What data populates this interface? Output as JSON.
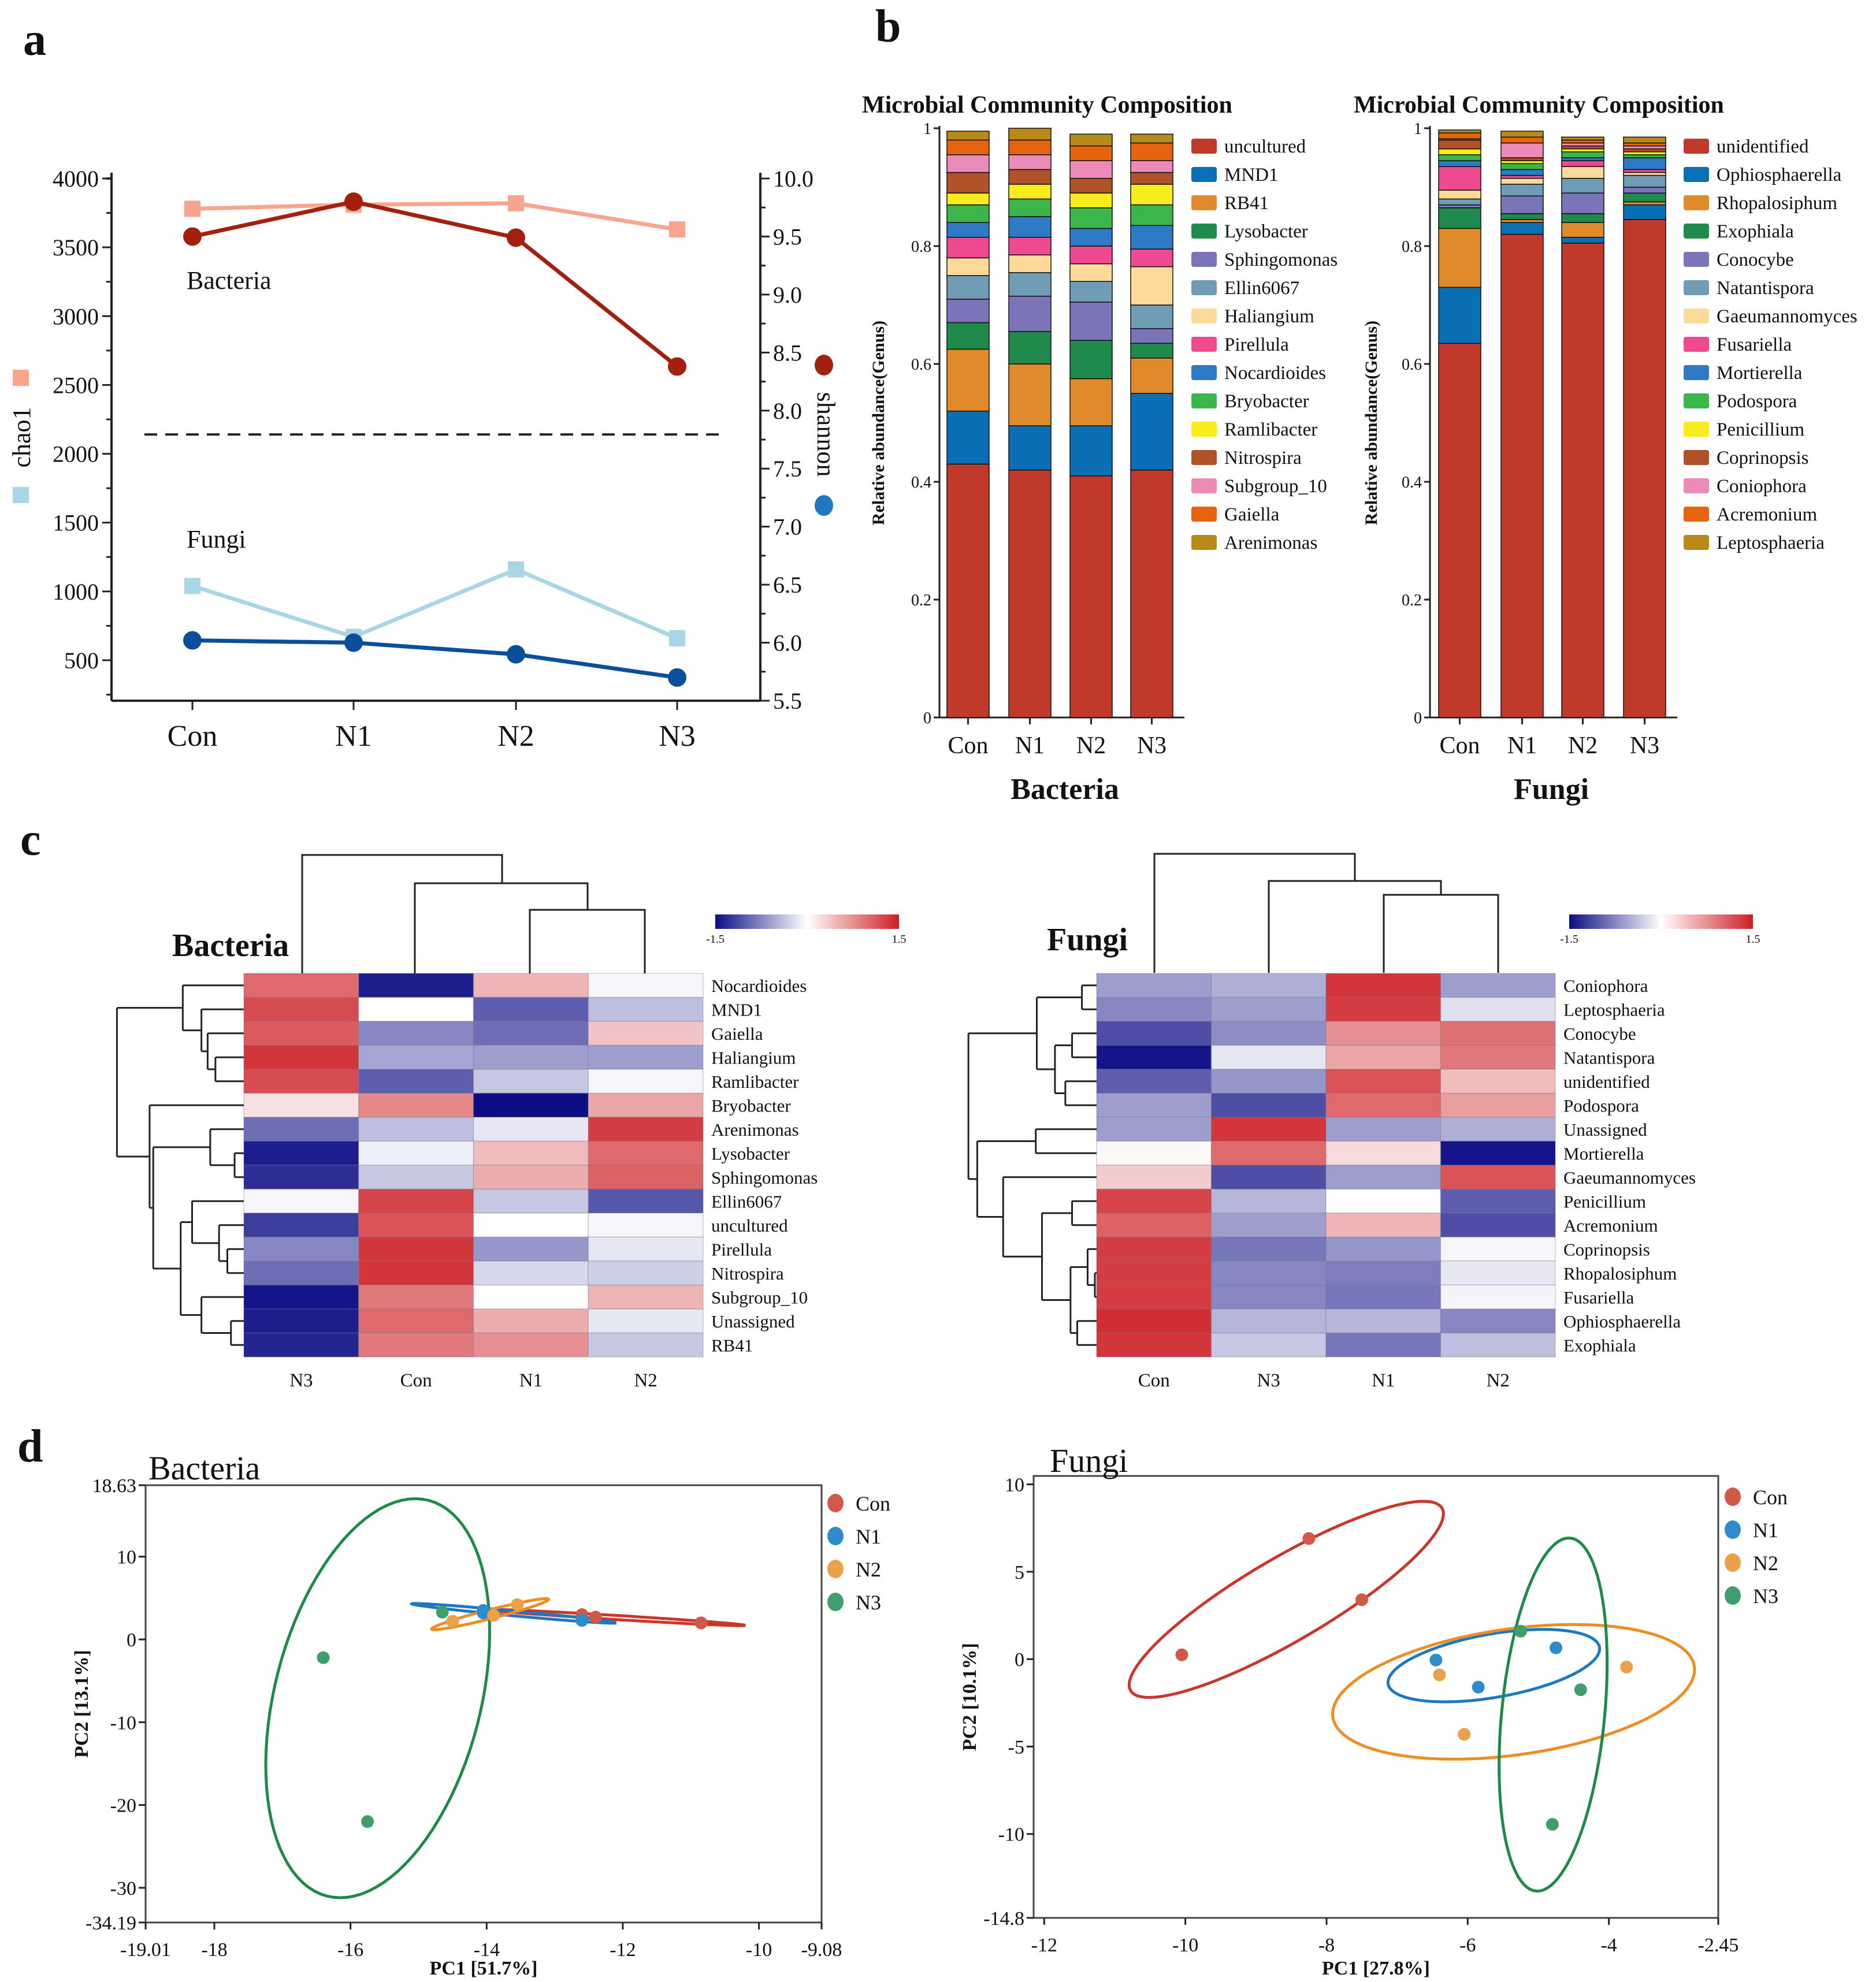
{
  "panel_labels": {
    "a": "a",
    "b": "b",
    "c": "c",
    "d": "d"
  },
  "chart_data": [
    {
      "id": "alpha-diversity",
      "type": "line",
      "categories": [
        "Con",
        "N1",
        "N2",
        "N3"
      ],
      "left_axis": {
        "label": "chao1",
        "ylim": [
          206,
          4000
        ],
        "ticks": [
          "500",
          "1000",
          "1500",
          "2000",
          "2500",
          "3000",
          "3500",
          "4000"
        ]
      },
      "right_axis": {
        "label": "shannon",
        "ylim": [
          5.5,
          10.0
        ],
        "ticks": [
          "5.5",
          "6.0",
          "6.5",
          "7.0",
          "7.5",
          "8.0",
          "8.5",
          "9.0",
          "9.5",
          "10.0"
        ]
      },
      "annotations": {
        "bacteria": "Bacteria",
        "fungi": "Fungi"
      },
      "divider_chao1": 2140,
      "series": [
        {
          "name": "Bacteria chao1",
          "axis": "left",
          "marker": "square",
          "color": "#f9a58e",
          "values": [
            3780,
            3810,
            3820,
            3630
          ]
        },
        {
          "name": "Bacteria shannon",
          "axis": "right",
          "marker": "circle",
          "color": "#a3200f",
          "values": [
            9.5,
            9.8,
            9.49,
            8.38
          ]
        },
        {
          "name": "Fungi chao1",
          "axis": "left",
          "marker": "square",
          "color": "#a9d6e5",
          "values": [
            1040,
            670,
            1160,
            660
          ]
        },
        {
          "name": "Fungi shannon",
          "axis": "right",
          "marker": "circle",
          "color": "#0b4f9c",
          "values": [
            6.02,
            6.0,
            5.9,
            5.7
          ]
        }
      ]
    },
    {
      "id": "composition-bacteria",
      "type": "bar",
      "stacked": true,
      "title": "Microbial Community Composition",
      "ylabel": "Relative abundance(Genus)",
      "xlabel": "Bacteria",
      "ylim": [
        0,
        1
      ],
      "yticks": [
        "0",
        "0.2",
        "0.4",
        "0.6",
        "0.8",
        "1"
      ],
      "categories": [
        "Con",
        "N1",
        "N2",
        "N3"
      ],
      "series": [
        {
          "name": "uncultured",
          "color": "#c0392b",
          "values": [
            0.43,
            0.42,
            0.41,
            0.42
          ]
        },
        {
          "name": "MND1",
          "color": "#0a6fb5",
          "values": [
            0.09,
            0.075,
            0.085,
            0.13
          ]
        },
        {
          "name": "RB41",
          "color": "#e08a2c",
          "values": [
            0.105,
            0.105,
            0.08,
            0.06
          ]
        },
        {
          "name": "Lysobacter",
          "color": "#1f8a4c",
          "values": [
            0.045,
            0.055,
            0.065,
            0.025
          ]
        },
        {
          "name": "Sphingomonas",
          "color": "#7b74b8",
          "values": [
            0.04,
            0.06,
            0.065,
            0.025
          ]
        },
        {
          "name": "Ellin6067",
          "color": "#6f9db5",
          "values": [
            0.04,
            0.04,
            0.035,
            0.04
          ]
        },
        {
          "name": "Haliangium",
          "color": "#fdd99a",
          "values": [
            0.03,
            0.03,
            0.03,
            0.065
          ]
        },
        {
          "name": "Pirellula",
          "color": "#ee4a8f",
          "values": [
            0.035,
            0.03,
            0.03,
            0.03
          ]
        },
        {
          "name": "Nocardioides",
          "color": "#2e7bc4",
          "values": [
            0.025,
            0.035,
            0.03,
            0.04
          ]
        },
        {
          "name": "Bryobacter",
          "color": "#3cb64a",
          "values": [
            0.03,
            0.03,
            0.035,
            0.035
          ]
        },
        {
          "name": "Ramlibacter",
          "color": "#f8ec1d",
          "values": [
            0.02,
            0.025,
            0.025,
            0.035
          ]
        },
        {
          "name": "Nitrospira",
          "color": "#b0522a",
          "values": [
            0.035,
            0.025,
            0.025,
            0.02
          ]
        },
        {
          "name": "Subgroup_10",
          "color": "#ec8bb8",
          "values": [
            0.03,
            0.025,
            0.03,
            0.02
          ]
        },
        {
          "name": "Gaiella",
          "color": "#e6640f",
          "values": [
            0.025,
            0.025,
            0.025,
            0.03
          ]
        },
        {
          "name": "Arenimonas",
          "color": "#b98a1a",
          "values": [
            0.015,
            0.02,
            0.02,
            0.015
          ]
        }
      ]
    },
    {
      "id": "composition-fungi",
      "type": "bar",
      "stacked": true,
      "title": "Microbial Community Composition",
      "ylabel": "Relative abundance(Genus)",
      "xlabel": "Fungi",
      "ylim": [
        0,
        1
      ],
      "yticks": [
        "0",
        "0.2",
        "0.4",
        "0.6",
        "0.8",
        "1"
      ],
      "categories": [
        "Con",
        "N1",
        "N2",
        "N3"
      ],
      "series": [
        {
          "name": "unidentified",
          "color": "#c0392b",
          "values": [
            0.635,
            0.82,
            0.805,
            0.845
          ]
        },
        {
          "name": "Ophiosphaerella",
          "color": "#0a6fb5",
          "values": [
            0.095,
            0.02,
            0.01,
            0.025
          ]
        },
        {
          "name": "Rhopalosiphum",
          "color": "#e08a2c",
          "values": [
            0.1,
            0.005,
            0.025,
            0.005
          ]
        },
        {
          "name": "Exophiala",
          "color": "#1f8a4c",
          "values": [
            0.035,
            0.01,
            0.015,
            0.015
          ]
        },
        {
          "name": "Conocybe",
          "color": "#7b74b8",
          "values": [
            0.005,
            0.03,
            0.035,
            0.01
          ]
        },
        {
          "name": "Natantispora",
          "color": "#6f9db5",
          "values": [
            0.01,
            0.02,
            0.025,
            0.02
          ]
        },
        {
          "name": "Gaeumannomyces",
          "color": "#fdd99a",
          "values": [
            0.015,
            0.01,
            0.02,
            0.005
          ]
        },
        {
          "name": "Fusariella",
          "color": "#ee4a8f",
          "values": [
            0.04,
            0.005,
            0.01,
            0.005
          ]
        },
        {
          "name": "Mortierella",
          "color": "#2e7bc4",
          "values": [
            0.01,
            0.01,
            0.005,
            0.02
          ]
        },
        {
          "name": "Podospora",
          "color": "#3cb64a",
          "values": [
            0.01,
            0.01,
            0.01,
            0.005
          ]
        },
        {
          "name": "Penicillium",
          "color": "#f8ec1d",
          "values": [
            0.01,
            0.005,
            0.005,
            0.005
          ]
        },
        {
          "name": "Coprinopsis",
          "color": "#b0522a",
          "values": [
            0.015,
            0.005,
            0.005,
            0.005
          ]
        },
        {
          "name": "Coniophora",
          "color": "#ec8bb8",
          "values": [
            0.002,
            0.025,
            0.005,
            0.005
          ]
        },
        {
          "name": "Acremonium",
          "color": "#e6640f",
          "values": [
            0.01,
            0.01,
            0.005,
            0.005
          ]
        },
        {
          "name": "Leptosphaeria",
          "color": "#b98a1a",
          "values": [
            0.005,
            0.01,
            0.005,
            0.01
          ]
        }
      ]
    },
    {
      "id": "heatmap-bacteria",
      "type": "heatmap",
      "title": "Bacteria",
      "scale": {
        "min": -1.5,
        "max": 1.5,
        "min_label": "-1.5",
        "max_label": "1.5",
        "low_color": "#0d0d85",
        "mid_color": "#ffffff",
        "high_color": "#cd1f24"
      },
      "columns": [
        "N3",
        "Con",
        "N1",
        "N2"
      ],
      "rows": [
        "Nocardioides",
        "MND1",
        "Gaiella",
        "Haliangium",
        "Ramlibacter",
        "Bryobacter",
        "Arenimonas",
        "Lysobacter",
        "Sphingomonas",
        "Ellin6067",
        "uncultured",
        "Pirellula",
        "Nitrospira",
        "Subgroup_10",
        "Unassigned",
        "RB41"
      ],
      "values": [
        [
          1.0,
          -1.4,
          0.5,
          -0.05
        ],
        [
          1.2,
          0.0,
          -1.0,
          -0.4
        ],
        [
          1.1,
          -0.75,
          -0.9,
          0.4
        ],
        [
          1.35,
          -0.55,
          -0.6,
          -0.6
        ],
        [
          1.2,
          -1.0,
          -0.35,
          -0.05
        ],
        [
          0.2,
          0.8,
          -1.5,
          0.6
        ],
        [
          -0.9,
          -0.4,
          -0.15,
          1.3
        ],
        [
          -1.4,
          -0.1,
          0.45,
          1.0
        ],
        [
          -1.3,
          -0.35,
          0.55,
          1.05
        ],
        [
          -0.05,
          1.25,
          -0.35,
          -1.05
        ],
        [
          -1.2,
          1.15,
          0.0,
          -0.05
        ],
        [
          -0.75,
          1.35,
          -0.65,
          -0.15
        ],
        [
          -0.9,
          1.35,
          -0.25,
          -0.3
        ],
        [
          -1.45,
          0.9,
          0.0,
          0.5
        ],
        [
          -1.4,
          1.0,
          0.55,
          -0.15
        ],
        [
          -1.35,
          0.9,
          0.75,
          -0.35
        ]
      ]
    },
    {
      "id": "heatmap-fungi",
      "type": "heatmap",
      "title": "Fungi",
      "scale": {
        "min": -1.5,
        "max": 1.5,
        "min_label": "-1.5",
        "max_label": "1.5",
        "low_color": "#0d0d85",
        "mid_color": "#ffffff",
        "high_color": "#cd1f24"
      },
      "columns": [
        "Con",
        "N3",
        "N1",
        "N2"
      ],
      "rows": [
        "Coniophora",
        "Leptosphaeria",
        "Conocybe",
        "Natantispora",
        "unidentified",
        "Podospora",
        "Unassigned",
        "Mortierella",
        "Gaeumannomyces",
        "Penicillium",
        "Acremonium",
        "Coprinopsis",
        "Rhopalosiphum",
        "Fusariella",
        "Ophiosphaerella",
        "Exophiala"
      ],
      "values": [
        [
          -0.6,
          -0.5,
          1.35,
          -0.6
        ],
        [
          -0.75,
          -0.6,
          1.3,
          -0.2
        ],
        [
          -1.1,
          -0.7,
          0.75,
          0.95
        ],
        [
          -1.45,
          -0.15,
          0.6,
          0.9
        ],
        [
          -1.0,
          -0.65,
          1.15,
          0.45
        ],
        [
          -0.6,
          -1.1,
          1.0,
          0.65
        ],
        [
          -0.6,
          1.35,
          -0.6,
          -0.5
        ],
        [
          0.05,
          1.0,
          0.25,
          -1.45
        ],
        [
          0.35,
          -1.1,
          -0.6,
          1.15
        ],
        [
          1.25,
          -0.45,
          0.0,
          -1.0
        ],
        [
          1.05,
          -0.6,
          0.5,
          -1.1
        ],
        [
          1.3,
          -0.85,
          -0.65,
          -0.05
        ],
        [
          1.3,
          -0.75,
          -0.8,
          -0.15
        ],
        [
          1.3,
          -0.75,
          -0.85,
          -0.07
        ],
        [
          1.4,
          -0.45,
          -0.45,
          -0.75
        ],
        [
          1.35,
          -0.35,
          -0.85,
          -0.4
        ]
      ]
    },
    {
      "id": "pca-bacteria",
      "type": "scatter",
      "title": "Bacteria",
      "xlabel": "PC1 [51.7%]",
      "ylabel": "PC2 [13.1%]",
      "xlim": [
        -19.01,
        -9.08
      ],
      "ylim": [
        -34.19,
        18.63
      ],
      "xticks": [
        "-19.01",
        "-18",
        "-16",
        "-14",
        "-12",
        "-10",
        "-9.08"
      ],
      "yticks": [
        "18.63",
        "10",
        "0",
        "-10",
        "-20",
        "-30",
        "-34.19"
      ],
      "legend_position": "right",
      "groups": [
        {
          "name": "Con",
          "color": "#d0594a",
          "ellipse_color": "#c9362a",
          "points": [
            [
              -12.6,
              3.0
            ],
            [
              -12.4,
              2.7
            ],
            [
              -10.85,
              2.0
            ]
          ],
          "ellipse": {
            "center": [
              -12.1,
              2.65
            ],
            "axis1": [
              1.9,
              -0.95
            ],
            "axis2": [
              0.0,
              0.25
            ]
          }
        },
        {
          "name": "N1",
          "color": "#2f8ccc",
          "ellipse_color": "#1d78c4",
          "points": [
            [
              -14.05,
              3.5
            ],
            [
              -14.05,
              3.2
            ],
            [
              -12.6,
              2.3
            ]
          ],
          "ellipse": {
            "center": [
              -13.6,
              3.15
            ],
            "axis1": [
              1.5,
              -1.15
            ],
            "axis2": [
              0.0,
              0.3
            ]
          }
        },
        {
          "name": "N2",
          "color": "#eba04a",
          "ellipse_color": "#ee8e22",
          "points": [
            [
              -14.5,
              2.2
            ],
            [
              -13.9,
              2.9
            ],
            [
              -13.55,
              4.2
            ]
          ],
          "ellipse": {
            "center": [
              -13.95,
              3.05
            ],
            "axis1": [
              0.85,
              1.85
            ],
            "axis2": [
              0.12,
              -0.3
            ]
          }
        },
        {
          "name": "N3",
          "color": "#3f9e6c",
          "ellipse_color": "#1f8a48",
          "points": [
            [
              -14.65,
              3.3
            ],
            [
              -16.4,
              -2.2
            ],
            [
              -15.75,
              -22.0
            ]
          ],
          "ellipse": {
            "center": [
              -15.6,
              -7.1
            ],
            "axis1": [
              0.55,
              24.1
            ],
            "axis2": [
              1.55,
              0.0
            ]
          }
        }
      ]
    },
    {
      "id": "pca-fungi",
      "type": "scatter",
      "title": "Fungi",
      "xlabel": "PC1 [27.8%]",
      "ylabel": "PC2 [10.1%]",
      "xlim": [
        -12.15,
        -2.45
      ],
      "ylim": [
        -14.8,
        10.48
      ],
      "xticks": [
        "-12",
        "-10",
        "-8",
        "-6",
        "-4",
        "-2.45"
      ],
      "yticks": [
        "10",
        "5",
        "0",
        "-5",
        "-10",
        "-14.8"
      ],
      "legend_position": "right",
      "groups": [
        {
          "name": "Con",
          "color": "#d0594a",
          "ellipse_color": "#c9362a",
          "points": [
            [
              -10.05,
              0.25
            ],
            [
              -8.25,
              6.9
            ],
            [
              -7.5,
              3.4
            ]
          ],
          "ellipse": {
            "center": [
              -8.57,
              3.42
            ],
            "axis1": [
              2.15,
              5.44
            ],
            "axis2": [
              0.58,
              -1.37
            ]
          }
        },
        {
          "name": "N1",
          "color": "#2f8ccc",
          "ellipse_color": "#1d78c4",
          "points": [
            [
              -6.45,
              -0.05
            ],
            [
              -5.85,
              -1.6
            ],
            [
              -4.75,
              0.65
            ]
          ],
          "ellipse": {
            "center": [
              -5.63,
              -0.37
            ],
            "axis1": [
              1.48,
              1.24
            ],
            "axis2": [
              0.24,
              -1.66
            ]
          }
        },
        {
          "name": "N2",
          "color": "#eba04a",
          "ellipse_color": "#ee8e22",
          "points": [
            [
              -6.4,
              -0.9
            ],
            [
              -6.05,
              -4.3
            ],
            [
              -3.75,
              -0.45
            ]
          ],
          "ellipse": {
            "center": [
              -5.35,
              -1.87
            ],
            "axis1": [
              2.53,
              1.85
            ],
            "axis2": [
              0.42,
              -3.38
            ]
          }
        },
        {
          "name": "N3",
          "color": "#3f9e6c",
          "ellipse_color": "#1f8a48",
          "points": [
            [
              -5.25,
              1.6
            ],
            [
              -4.4,
              -1.75
            ],
            [
              -4.8,
              -9.45
            ]
          ],
          "ellipse": {
            "center": [
              -4.79,
              -3.17
            ],
            "axis1": [
              0.23,
              10.1
            ],
            "axis2": [
              0.73,
              -0.1
            ]
          }
        }
      ]
    }
  ]
}
